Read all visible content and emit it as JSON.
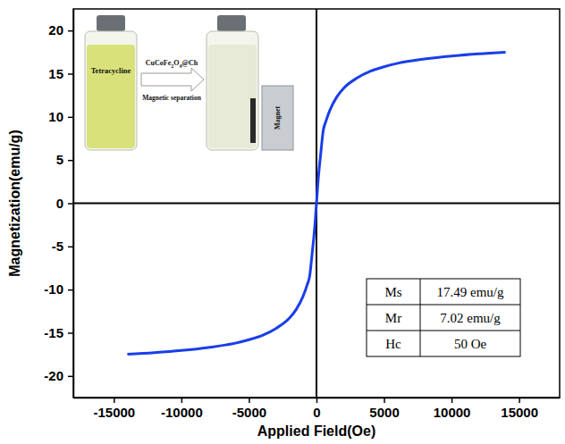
{
  "chart_data": {
    "type": "line",
    "x_label": "Applied Field(Oe)",
    "y_label": "Magnetization(emu/g)",
    "x": [
      -14000,
      -12000,
      -10000,
      -8000,
      -6000,
      -5000,
      -4000,
      -3000,
      -2000,
      -1500,
      -1000,
      -700,
      -500,
      -300,
      -200,
      -100,
      -50,
      0,
      50,
      100,
      200,
      300,
      500,
      700,
      1000,
      1500,
      2000,
      3000,
      4000,
      5000,
      6000,
      8000,
      10000,
      12000,
      14000
    ],
    "values": [
      -17.49,
      -17.3,
      -17.05,
      -16.7,
      -16.2,
      -15.8,
      -15.3,
      -14.5,
      -13.3,
      -12.3,
      -10.8,
      -9.5,
      -8.4,
      -5.5,
      -4.0,
      -2.2,
      -1.1,
      0,
      1.1,
      2.2,
      4.0,
      5.5,
      8.4,
      9.5,
      10.8,
      12.3,
      13.3,
      14.5,
      15.3,
      15.8,
      16.2,
      16.7,
      17.05,
      17.3,
      17.49
    ],
    "color": "#1a3ee8",
    "xlim": [
      -18000,
      18000
    ],
    "ylim": [
      -22.5,
      22.5
    ],
    "xticks": [
      -15000,
      -10000,
      -5000,
      0,
      5000,
      10000,
      15000
    ],
    "yticks": [
      -20,
      -15,
      -10,
      -5,
      0,
      5,
      10,
      15,
      20
    ],
    "annotations": [
      "Tetracycline",
      "CuCoFe2O4@Ch",
      "Magnetic separation",
      "Magnet"
    ],
    "table": {
      "rows": [
        [
          "Ms",
          "17.49 emu/g"
        ],
        [
          "Mr",
          "7.02 emu/g"
        ],
        [
          "Hc",
          "50 Oe"
        ]
      ]
    }
  }
}
